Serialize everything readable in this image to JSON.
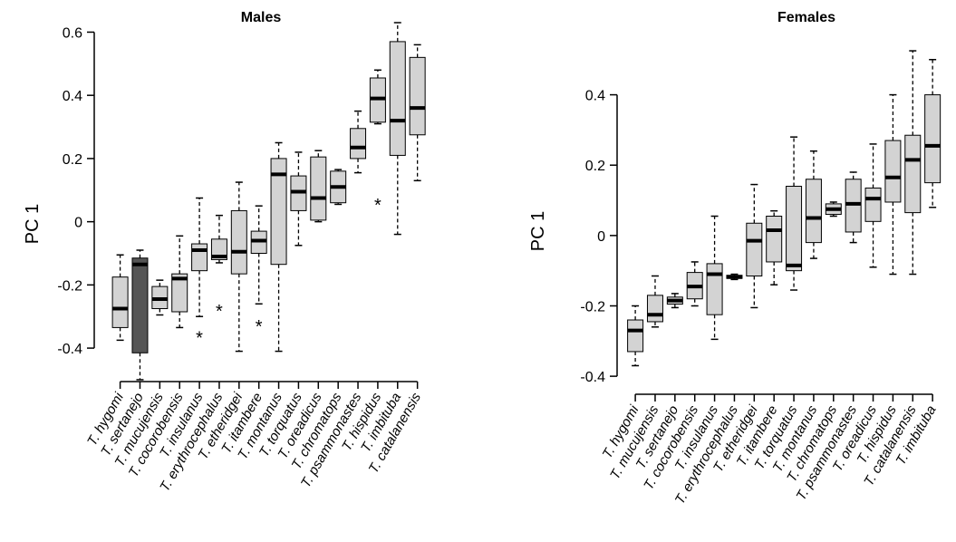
{
  "chart_data": [
    {
      "type": "box",
      "title": "Males",
      "ylabel": "PC 1",
      "ylim": [
        -0.46,
        0.63
      ],
      "yticks": [
        -0.4,
        -0.2,
        0,
        0.2,
        0.4,
        0.6
      ],
      "ytick_labels": [
        "-0.4",
        "-0.2",
        "0",
        "0.2",
        "0.4",
        "0.6"
      ],
      "categories": [
        "T. hygomi",
        "T. sertanejo",
        "T. mucujensis",
        "T. cocorobensis",
        "T. insulanus",
        "T. erythrocephalus",
        "T. etheridgei",
        "T. itambere",
        "T. montanus",
        "T. torquatus",
        "T. oreadicus",
        "T. chromatops",
        "T. psammonastes",
        "T. hispidus",
        "T. imbituba",
        "T. catalanensis"
      ],
      "highlight_color": "#555555",
      "box_color": "#d3d3d3",
      "outlier_marker": "*",
      "boxes": [
        {
          "low": -0.375,
          "q1": -0.335,
          "median": -0.275,
          "q3": -0.175,
          "high": -0.105
        },
        {
          "low": -0.5,
          "q1": -0.415,
          "median": -0.135,
          "q3": -0.115,
          "high": -0.09,
          "highlight": true
        },
        {
          "low": -0.295,
          "q1": -0.275,
          "median": -0.245,
          "q3": -0.205,
          "high": -0.185
        },
        {
          "low": -0.335,
          "q1": -0.285,
          "median": -0.18,
          "q3": -0.165,
          "high": -0.045
        },
        {
          "low": -0.3,
          "q1": -0.155,
          "median": -0.09,
          "q3": -0.07,
          "high": 0.075,
          "outliers": [
            -0.355
          ]
        },
        {
          "low": -0.13,
          "q1": -0.12,
          "median": -0.11,
          "q3": -0.055,
          "high": 0.02,
          "outliers": [
            -0.27
          ]
        },
        {
          "low": -0.41,
          "q1": -0.165,
          "median": -0.095,
          "q3": 0.035,
          "high": 0.125
        },
        {
          "low": -0.26,
          "q1": -0.1,
          "median": -0.06,
          "q3": -0.03,
          "high": 0.05,
          "outliers": [
            -0.32
          ]
        },
        {
          "low": -0.41,
          "q1": -0.135,
          "median": 0.15,
          "q3": 0.2,
          "high": 0.25
        },
        {
          "low": -0.075,
          "q1": 0.035,
          "median": 0.095,
          "q3": 0.145,
          "high": 0.22
        },
        {
          "low": 0.0,
          "q1": 0.005,
          "median": 0.075,
          "q3": 0.205,
          "high": 0.225
        },
        {
          "low": 0.055,
          "q1": 0.06,
          "median": 0.11,
          "q3": 0.16,
          "high": 0.165
        },
        {
          "low": 0.155,
          "q1": 0.2,
          "median": 0.235,
          "q3": 0.295,
          "high": 0.35
        },
        {
          "low": 0.31,
          "q1": 0.315,
          "median": 0.39,
          "q3": 0.455,
          "high": 0.48,
          "outliers": [
            0.065
          ]
        },
        {
          "low": -0.04,
          "q1": 0.21,
          "median": 0.32,
          "q3": 0.57,
          "high": 0.63
        },
        {
          "low": 0.13,
          "q1": 0.275,
          "median": 0.36,
          "q3": 0.52,
          "high": 0.56
        }
      ]
    },
    {
      "type": "box",
      "title": "Females",
      "ylabel": "PC 1",
      "ylim": [
        -0.41,
        0.52
      ],
      "yticks": [
        -0.4,
        -0.2,
        0,
        0.2,
        0.4
      ],
      "ytick_labels": [
        "-0.4",
        "-0.2",
        "0",
        "0.2",
        "0.4"
      ],
      "categories": [
        "T. hygomi",
        "T. mucujensis",
        "T. sertanejo",
        "T. cocorobensis",
        "T. insulanus",
        "T. erythrocephalus",
        "T. etheridgei",
        "T. itambere",
        "T. torquatus",
        "T. montanus",
        "T. chromatops",
        "T. psammonastes",
        "T. oreadicus",
        "T. hispidus",
        "T. catalanensis",
        "T. imbituba"
      ],
      "box_color": "#d3d3d3",
      "boxes": [
        {
          "low": -0.37,
          "q1": -0.33,
          "median": -0.27,
          "q3": -0.24,
          "high": -0.2
        },
        {
          "low": -0.26,
          "q1": -0.245,
          "median": -0.225,
          "q3": -0.17,
          "high": -0.115
        },
        {
          "low": -0.205,
          "q1": -0.195,
          "median": -0.185,
          "q3": -0.175,
          "high": -0.165
        },
        {
          "low": -0.2,
          "q1": -0.18,
          "median": -0.145,
          "q3": -0.105,
          "high": -0.075
        },
        {
          "low": -0.295,
          "q1": -0.225,
          "median": -0.11,
          "q3": -0.08,
          "high": 0.055
        },
        {
          "low": -0.125,
          "q1": -0.122,
          "median": -0.118,
          "q3": -0.113,
          "high": -0.11
        },
        {
          "low": -0.205,
          "q1": -0.115,
          "median": -0.015,
          "q3": 0.035,
          "high": 0.145
        },
        {
          "low": -0.14,
          "q1": -0.075,
          "median": 0.015,
          "q3": 0.055,
          "high": 0.07
        },
        {
          "low": -0.155,
          "q1": -0.1,
          "median": -0.085,
          "q3": 0.14,
          "high": 0.28
        },
        {
          "low": -0.065,
          "q1": -0.02,
          "median": 0.05,
          "q3": 0.16,
          "high": 0.24
        },
        {
          "low": 0.055,
          "q1": 0.06,
          "median": 0.075,
          "q3": 0.09,
          "high": 0.095
        },
        {
          "low": -0.02,
          "q1": 0.01,
          "median": 0.09,
          "q3": 0.16,
          "high": 0.18
        },
        {
          "low": -0.09,
          "q1": 0.04,
          "median": 0.105,
          "q3": 0.135,
          "high": 0.26
        },
        {
          "low": -0.11,
          "q1": 0.095,
          "median": 0.165,
          "q3": 0.27,
          "high": 0.4
        },
        {
          "low": -0.11,
          "q1": 0.065,
          "median": 0.215,
          "q3": 0.285,
          "high": 0.525
        },
        {
          "low": 0.08,
          "q1": 0.15,
          "median": 0.255,
          "q3": 0.4,
          "high": 0.5
        }
      ]
    }
  ]
}
